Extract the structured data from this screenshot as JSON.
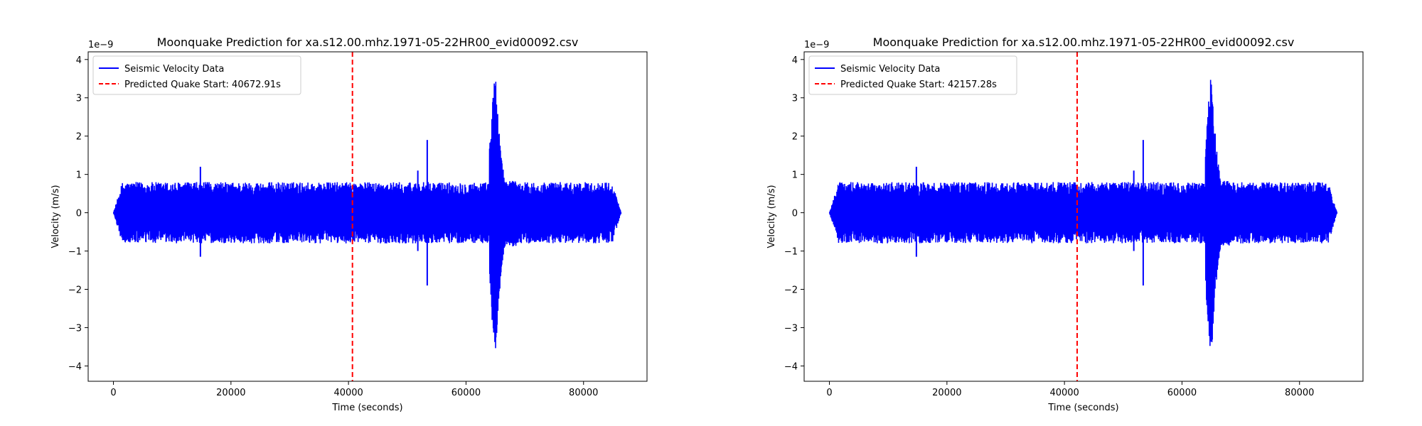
{
  "figure": {
    "background": "#ffffff"
  },
  "chart_data": [
    {
      "type": "line",
      "title": "Moonquake Prediction for xa.s12.00.mhz.1971-05-22HR00_evid00092.csv",
      "xlabel": "Time (seconds)",
      "ylabel": "Velocity (m/s)",
      "y_offset_text": "1e−9",
      "xlim": [
        -4300,
        90800
      ],
      "ylim": [
        -4.4,
        4.2
      ],
      "xticks": [
        0,
        20000,
        40000,
        60000,
        80000
      ],
      "xtick_labels": [
        "0",
        "20000",
        "40000",
        "60000",
        "80000"
      ],
      "yticks": [
        -4,
        -3,
        -2,
        -1,
        0,
        1,
        2,
        3,
        4
      ],
      "ytick_labels": [
        "−4",
        "−3",
        "−2",
        "−1",
        "0",
        "1",
        "2",
        "3",
        "4"
      ],
      "grid": false,
      "legend_position": "upper-left",
      "series": [
        {
          "name": "Seismic Velocity Data",
          "color": "#0000ff",
          "style": "solid",
          "envelope": {
            "time_range": [
              0,
              86400
            ],
            "typical_amplitude": 0.8,
            "spikes": [
              {
                "t": 14800,
                "y_max": 1.2,
                "y_min": -1.15
              },
              {
                "t": 51800,
                "y_max": 1.1,
                "y_min": -1.0
              },
              {
                "t": 53400,
                "y_max": 1.9,
                "y_min": -1.9
              }
            ],
            "event": {
              "onset": 64000,
              "peak_time": 65000,
              "peak_max": 3.8,
              "peak_min": -4.0,
              "decay_end": 68500
            }
          }
        },
        {
          "name": "Predicted Quake Start: 40672.91s",
          "color": "#ff0000",
          "style": "dashed",
          "x": 40672.91
        }
      ]
    },
    {
      "type": "line",
      "title": "Moonquake Prediction for xa.s12.00.mhz.1971-05-22HR00_evid00092.csv",
      "xlabel": "Time (seconds)",
      "ylabel": "Velocity (m/s)",
      "y_offset_text": "1e−9",
      "xlim": [
        -4300,
        90800
      ],
      "ylim": [
        -4.4,
        4.2
      ],
      "xticks": [
        0,
        20000,
        40000,
        60000,
        80000
      ],
      "xtick_labels": [
        "0",
        "20000",
        "40000",
        "60000",
        "80000"
      ],
      "yticks": [
        -4,
        -3,
        -2,
        -1,
        0,
        1,
        2,
        3,
        4
      ],
      "ytick_labels": [
        "−4",
        "−3",
        "−2",
        "−1",
        "0",
        "1",
        "2",
        "3",
        "4"
      ],
      "grid": false,
      "legend_position": "upper-left",
      "series": [
        {
          "name": "Seismic Velocity Data",
          "color": "#0000ff",
          "style": "solid",
          "envelope": {
            "time_range": [
              0,
              86400
            ],
            "typical_amplitude": 0.8,
            "spikes": [
              {
                "t": 14800,
                "y_max": 1.2,
                "y_min": -1.15
              },
              {
                "t": 51800,
                "y_max": 1.1,
                "y_min": -1.0
              },
              {
                "t": 53400,
                "y_max": 1.9,
                "y_min": -1.9
              }
            ],
            "event": {
              "onset": 64000,
              "peak_time": 65000,
              "peak_max": 3.8,
              "peak_min": -4.0,
              "decay_end": 68500
            }
          }
        },
        {
          "name": "Predicted Quake Start: 42157.28s",
          "color": "#ff0000",
          "style": "dashed",
          "x": 42157.28
        }
      ]
    }
  ]
}
